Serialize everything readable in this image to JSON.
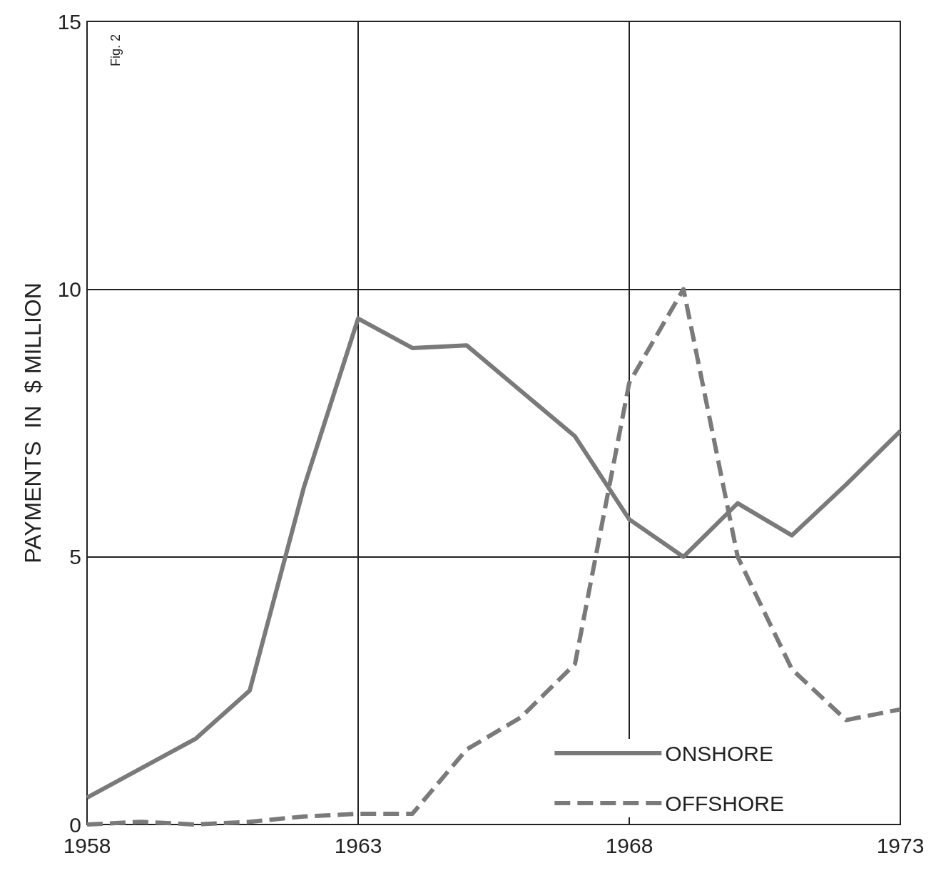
{
  "chart_data": {
    "type": "line",
    "ylabel": "PAYMENTS  IN  $ MILLION",
    "annotations": [
      "Fig. 2"
    ],
    "x": [
      1958,
      1959,
      1960,
      1961,
      1962,
      1963,
      1964,
      1965,
      1966,
      1967,
      1968,
      1969,
      1970,
      1971,
      1972,
      1973
    ],
    "series": [
      {
        "name": "ONSHORE",
        "color": "#7a7a7a",
        "line_style": "solid",
        "values": [
          0.5,
          1.05,
          1.6,
          2.5,
          6.3,
          9.45,
          8.9,
          8.95,
          8.1,
          7.25,
          5.7,
          5.0,
          6.0,
          5.4,
          6.35,
          7.35
        ]
      },
      {
        "name": "OFFSHORE",
        "color": "#7a7a7a",
        "line_style": "dashed",
        "values": [
          0,
          0.05,
          0,
          0.05,
          0.15,
          0.2,
          0.2,
          1.4,
          2.0,
          3.0,
          8.25,
          10.0,
          5.0,
          2.9,
          1.95,
          2.15
        ]
      }
    ],
    "xlim": [
      1958,
      1973
    ],
    "xticks": [
      1958,
      1963,
      1968,
      1973
    ],
    "ylim": [
      0,
      15
    ],
    "yticks": [
      0,
      5,
      10,
      15
    ],
    "grid": true,
    "legend": "bottom right",
    "marker": "none"
  }
}
